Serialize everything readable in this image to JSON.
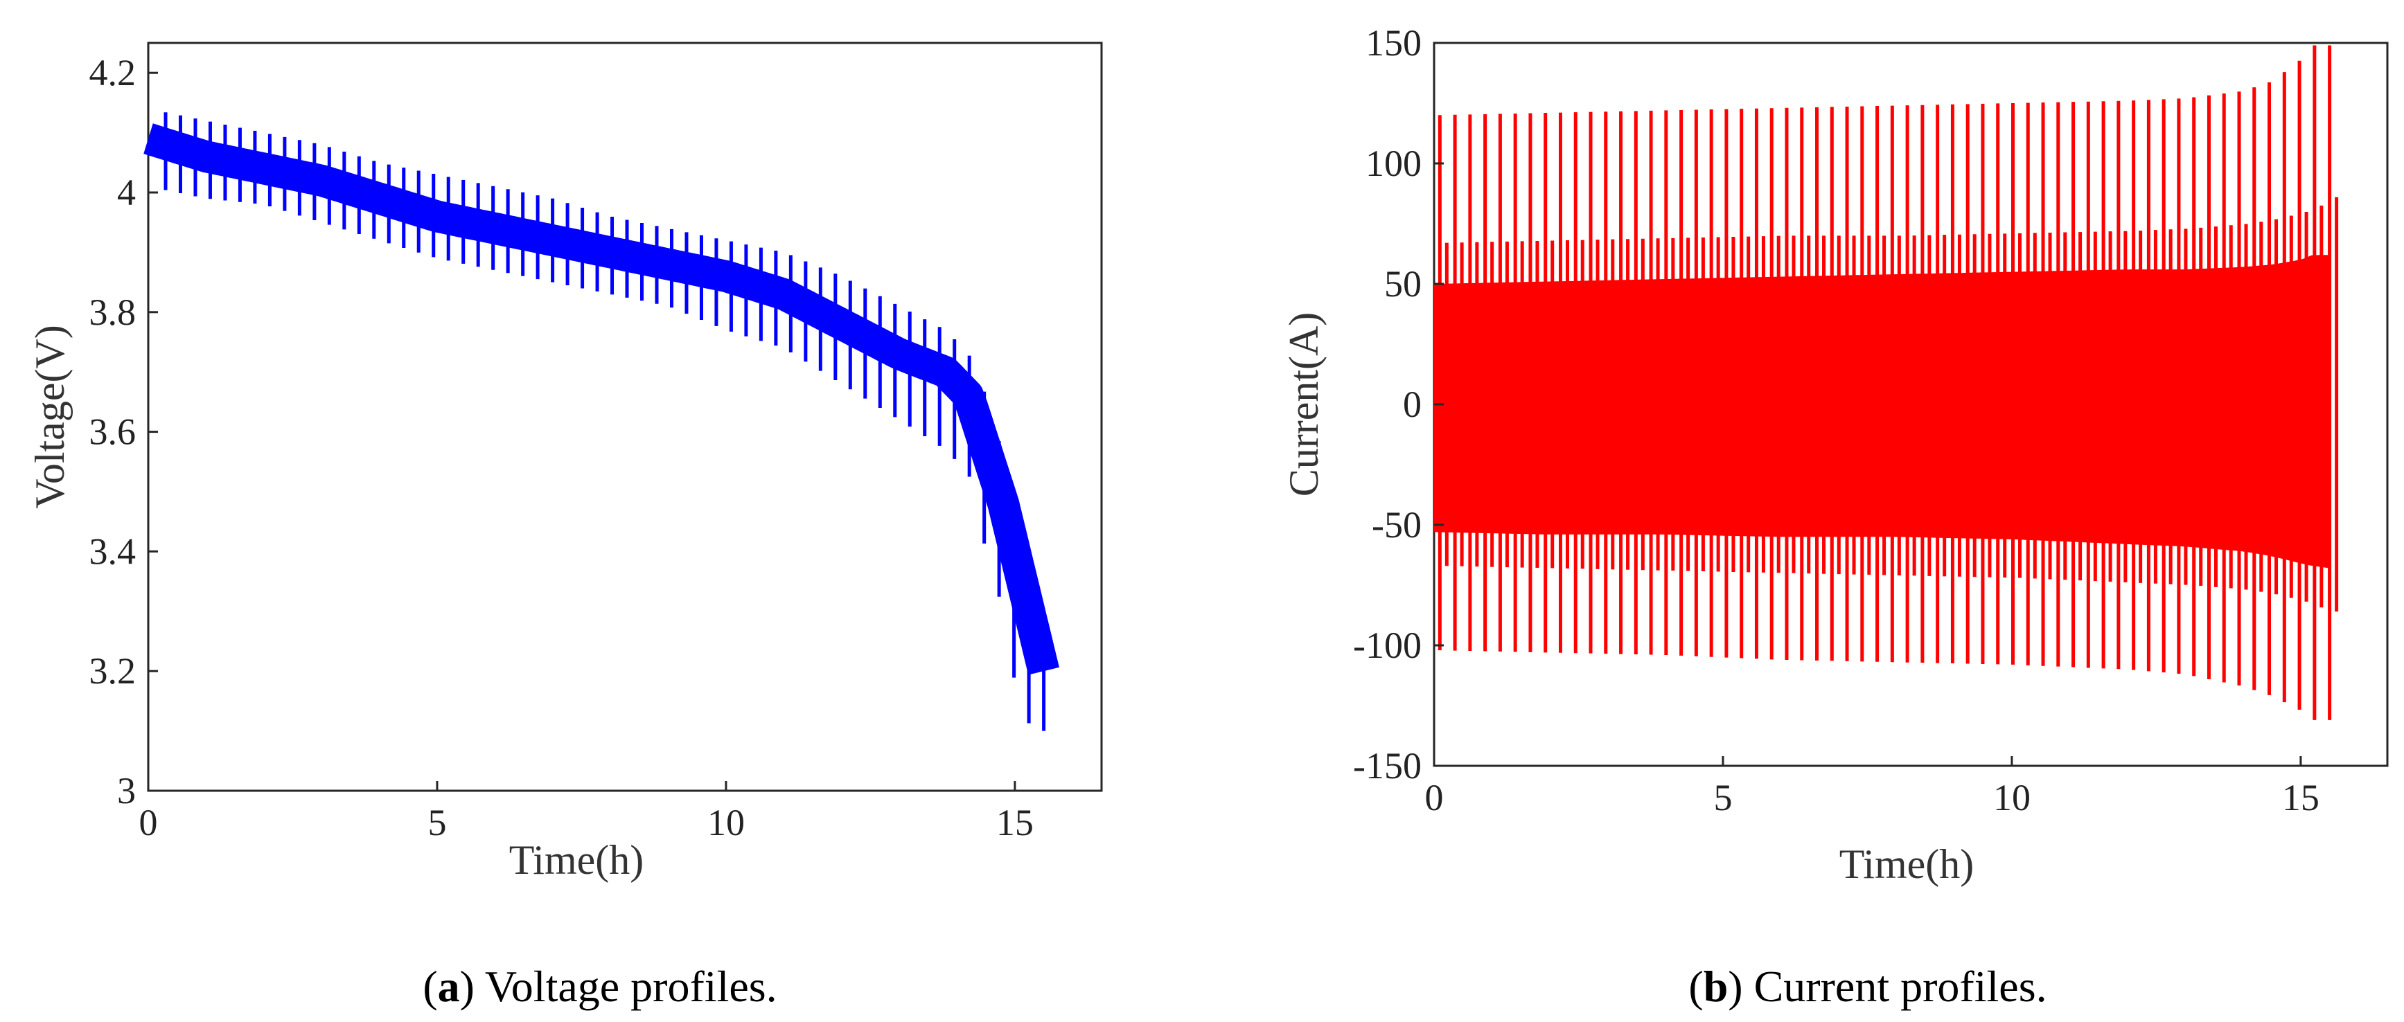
{
  "chart_data": [
    {
      "type": "line",
      "series": [
        {
          "name": "Voltage",
          "color": "#0000ff",
          "x": [
            0,
            1,
            2,
            3,
            4,
            5,
            6,
            7,
            8,
            9,
            10,
            11,
            12,
            13,
            13.8,
            14.2,
            14.5,
            14.8,
            15.1,
            15.5
          ],
          "values": [
            4.09,
            4.06,
            4.04,
            4.02,
            3.99,
            3.96,
            3.94,
            3.92,
            3.9,
            3.88,
            3.86,
            3.83,
            3.78,
            3.73,
            3.7,
            3.66,
            3.57,
            3.48,
            3.36,
            3.2
          ],
          "lower_spikes": [
            4.01,
            3.99,
            3.98,
            3.95,
            3.92,
            3.89,
            3.87,
            3.85,
            3.83,
            3.81,
            3.77,
            3.74,
            3.68,
            3.62,
            3.57,
            3.53,
            3.4,
            3.3,
            3.12,
            3.1
          ],
          "upper_spikes": [
            4.14,
            4.12,
            4.1,
            4.08,
            4.05,
            4.03,
            4.01,
            3.99,
            3.96,
            3.94,
            3.92,
            3.9,
            3.86,
            3.81,
            3.77,
            3.73,
            3.66,
            3.56,
            3.44,
            3.25
          ]
        }
      ],
      "xlabel": "Time(h)",
      "ylabel": "Voltage(V)",
      "xlim": [
        0,
        16.5
      ],
      "ylim": [
        3,
        4.25
      ],
      "x_ticks": [
        "0",
        "5",
        "10",
        "15"
      ],
      "y_ticks": [
        "3",
        "3.2",
        "3.4",
        "3.6",
        "3.8",
        "4",
        "4.2"
      ],
      "caption_letter": "a",
      "caption_text": " Voltage profiles."
    },
    {
      "type": "line",
      "series": [
        {
          "name": "Current",
          "color": "#ff0000",
          "x": [
            0,
            2,
            4,
            6,
            8,
            10,
            12,
            13,
            14,
            14.5,
            15,
            15.2,
            15.5
          ],
          "band_upper": [
            50,
            51,
            52,
            53,
            54,
            55,
            56,
            56,
            57,
            58,
            60,
            62,
            62
          ],
          "band_lower": [
            -53,
            -54,
            -54,
            -55,
            -55,
            -56,
            -58,
            -59,
            -61,
            -63,
            -66,
            -67,
            -68
          ],
          "mid_spike_upper": [
            67,
            68,
            69,
            70,
            70,
            71,
            72,
            73,
            75,
            77,
            80,
            82,
            86
          ],
          "mid_spike_lower": [
            -67,
            -68,
            -69,
            -70,
            -71,
            -72,
            -74,
            -75,
            -77,
            -79,
            -82,
            -84,
            -86
          ],
          "peak_upper": [
            120,
            121,
            122,
            123,
            124,
            125,
            126,
            127,
            130,
            134,
            143,
            149,
            149
          ],
          "peak_lower": [
            -102,
            -103,
            -104,
            -106,
            -107,
            -108,
            -110,
            -112,
            -117,
            -121,
            -127,
            -131,
            -131
          ]
        }
      ],
      "xlabel": "Time(h)",
      "ylabel": "Current(A)",
      "xlim": [
        0,
        16.5
      ],
      "ylim": [
        -150,
        150
      ],
      "x_ticks": [
        "0",
        "5",
        "10",
        "15"
      ],
      "y_ticks": [
        "-150",
        "-100",
        "-50",
        "0",
        "50",
        "100",
        "150"
      ],
      "caption_letter": "b",
      "caption_text": " Current profiles."
    }
  ]
}
